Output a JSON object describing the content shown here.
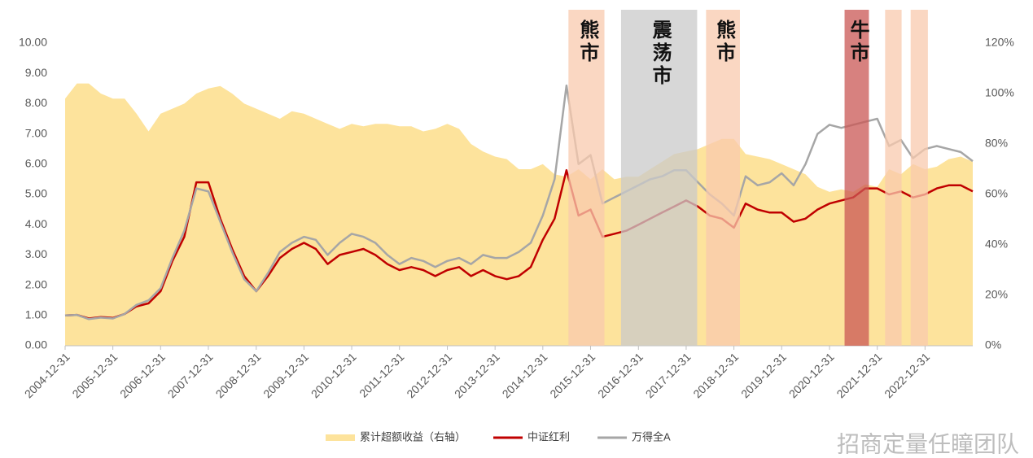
{
  "chart_data": {
    "type": "line",
    "x": [
      "2004-12-31",
      "2005-03-31",
      "2005-06-30",
      "2005-09-30",
      "2005-12-31",
      "2006-03-31",
      "2006-06-30",
      "2006-09-30",
      "2006-12-31",
      "2007-03-31",
      "2007-06-30",
      "2007-09-30",
      "2007-12-31",
      "2008-03-31",
      "2008-06-30",
      "2008-09-30",
      "2008-12-31",
      "2009-03-31",
      "2009-06-30",
      "2009-09-30",
      "2009-12-31",
      "2010-03-31",
      "2010-06-30",
      "2010-09-30",
      "2010-12-31",
      "2011-03-31",
      "2011-06-30",
      "2011-09-30",
      "2011-12-31",
      "2012-03-31",
      "2012-06-30",
      "2012-09-30",
      "2012-12-31",
      "2013-03-31",
      "2013-06-30",
      "2013-09-30",
      "2013-12-31",
      "2014-03-31",
      "2014-06-30",
      "2014-09-30",
      "2014-12-31",
      "2015-03-31",
      "2015-06-30",
      "2015-09-30",
      "2015-12-31",
      "2016-03-31",
      "2016-06-30",
      "2016-09-30",
      "2016-12-31",
      "2017-03-31",
      "2017-06-30",
      "2017-09-30",
      "2017-12-31",
      "2018-03-31",
      "2018-06-30",
      "2018-09-30",
      "2018-12-31",
      "2019-03-31",
      "2019-06-30",
      "2019-09-30",
      "2019-12-31",
      "2020-03-31",
      "2020-06-30",
      "2020-09-30",
      "2020-12-31",
      "2021-03-31",
      "2021-06-30",
      "2021-09-30",
      "2021-12-31",
      "2022-03-31",
      "2022-06-30",
      "2022-09-30",
      "2022-12-31",
      "2023-03-31",
      "2023-06-30",
      "2023-09-30",
      "2023-12-31"
    ],
    "series": [
      {
        "name": "累计超额收益（右轴）",
        "kind": "area",
        "axis": "y2",
        "color": "#fde39c",
        "values": [
          98,
          104,
          104,
          100,
          98,
          98,
          92,
          85,
          92,
          94,
          96,
          100,
          102,
          103,
          100,
          96,
          94,
          92,
          90,
          93,
          92,
          90,
          88,
          86,
          88,
          87,
          88,
          88,
          87,
          87,
          85,
          86,
          88,
          86,
          80,
          77,
          75,
          74,
          70,
          70,
          72,
          68,
          67,
          70,
          66,
          70,
          66,
          67,
          67,
          70,
          73,
          76,
          77,
          78,
          80,
          82,
          82,
          76,
          75,
          74,
          72,
          70,
          68,
          63,
          61,
          62,
          61,
          64,
          63,
          70,
          68,
          72,
          70,
          71,
          74,
          75,
          73
        ]
      },
      {
        "name": "中证红利",
        "kind": "line",
        "color": "#c00000",
        "values": [
          1.0,
          1.02,
          0.9,
          0.95,
          0.92,
          1.05,
          1.3,
          1.4,
          1.8,
          2.8,
          3.6,
          5.4,
          5.4,
          4.2,
          3.2,
          2.3,
          1.8,
          2.3,
          2.9,
          3.2,
          3.4,
          3.2,
          2.7,
          3.0,
          3.1,
          3.2,
          3.0,
          2.7,
          2.5,
          2.6,
          2.5,
          2.3,
          2.5,
          2.6,
          2.3,
          2.5,
          2.3,
          2.2,
          2.3,
          2.6,
          3.5,
          4.2,
          5.8,
          4.3,
          4.5,
          3.6,
          3.7,
          3.8,
          4.0,
          4.2,
          4.4,
          4.6,
          4.8,
          4.6,
          4.3,
          4.2,
          3.9,
          4.7,
          4.5,
          4.4,
          4.4,
          4.1,
          4.2,
          4.5,
          4.7,
          4.8,
          4.9,
          5.2,
          5.2,
          5.0,
          5.1,
          4.9,
          5.0,
          5.2,
          5.3,
          5.3,
          5.1
        ]
      },
      {
        "name": "万得全A",
        "kind": "line",
        "color": "#a6a6a6",
        "values": [
          1.0,
          1.02,
          0.88,
          0.93,
          0.9,
          1.05,
          1.35,
          1.5,
          1.9,
          2.9,
          3.8,
          5.2,
          5.1,
          4.1,
          3.1,
          2.2,
          1.8,
          2.4,
          3.1,
          3.4,
          3.6,
          3.5,
          3.0,
          3.4,
          3.7,
          3.6,
          3.4,
          3.0,
          2.7,
          2.9,
          2.8,
          2.6,
          2.8,
          2.9,
          2.7,
          3.0,
          2.9,
          2.9,
          3.1,
          3.4,
          4.3,
          5.5,
          8.6,
          6.0,
          6.3,
          4.7,
          4.9,
          5.1,
          5.3,
          5.5,
          5.6,
          5.8,
          5.8,
          5.4,
          5.0,
          4.7,
          4.3,
          5.6,
          5.3,
          5.4,
          5.7,
          5.3,
          6.0,
          7.0,
          7.3,
          7.2,
          7.3,
          7.4,
          7.5,
          6.6,
          6.8,
          6.2,
          6.5,
          6.6,
          6.5,
          6.4,
          6.1
        ]
      }
    ],
    "regions": [
      {
        "label": "熊市",
        "start": "2015-07-15",
        "end": "2016-04-15",
        "color": "#f8c9ae"
      },
      {
        "label": "震荡市",
        "start": "2016-08-20",
        "end": "2018-03-25",
        "color": "#c9c9c9"
      },
      {
        "label": "熊市",
        "start": "2018-06-01",
        "end": "2019-02-15",
        "color": "#f8c9ae"
      },
      {
        "label": "牛市",
        "start": "2021-04-25",
        "end": "2021-10-28",
        "color": "#c95754"
      },
      {
        "start": "2022-03-01",
        "end": "2022-07-05",
        "color": "#f8c9ae"
      },
      {
        "start": "2022-09-12",
        "end": "2023-01-22",
        "color": "#f8c9ae"
      }
    ],
    "xlim": [
      "2004-12-31",
      "2023-12-31"
    ],
    "xticks": [
      "2004-12-31",
      "2005-12-31",
      "2006-12-31",
      "2007-12-31",
      "2008-12-31",
      "2009-12-31",
      "2010-12-31",
      "2011-12-31",
      "2012-12-31",
      "2013-12-31",
      "2014-12-31",
      "2015-12-31",
      "2016-12-31",
      "2017-12-31",
      "2018-12-31",
      "2019-12-31",
      "2020-12-31",
      "2021-12-31",
      "2022-12-31"
    ],
    "ylim": [
      0,
      10
    ],
    "yticks": [
      {
        "value": 0,
        "label": "0.00"
      },
      {
        "value": 1,
        "label": "1.00"
      },
      {
        "value": 2,
        "label": "2.00"
      },
      {
        "value": 3,
        "label": "3.00"
      },
      {
        "value": 4,
        "label": "4.00"
      },
      {
        "value": 5,
        "label": "5.00"
      },
      {
        "value": 6,
        "label": "6.00"
      },
      {
        "value": 7,
        "label": "7.00"
      },
      {
        "value": 8,
        "label": "8.00"
      },
      {
        "value": 9,
        "label": "9.00"
      },
      {
        "value": 10,
        "label": "10.00"
      }
    ],
    "y2lim": [
      0,
      120
    ],
    "y2ticks": [
      {
        "value": 0,
        "label": "0%"
      },
      {
        "value": 20,
        "label": "20%"
      },
      {
        "value": 40,
        "label": "40%"
      },
      {
        "value": 60,
        "label": "60%"
      },
      {
        "value": 80,
        "label": "80%"
      },
      {
        "value": 100,
        "label": "100%"
      },
      {
        "value": 120,
        "label": "120%"
      }
    ],
    "watermark": "招商定量任瞳团队"
  }
}
